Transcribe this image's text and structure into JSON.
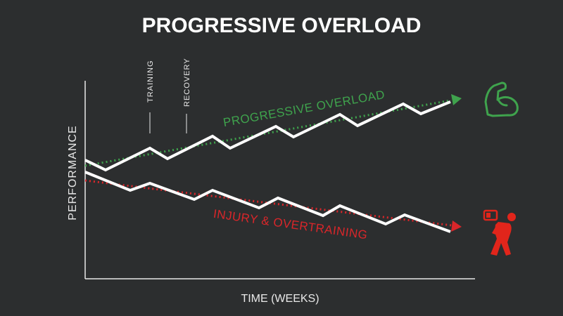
{
  "header": {
    "title": "PROGRESSIVE OVERLOAD"
  },
  "axes": {
    "y_label": "PERFORMANCE",
    "x_label": "TIME (WEEKS)"
  },
  "annotations": {
    "training": "TRAINING",
    "recovery": "RECOVERY",
    "progressive": "PROGRESSIVE OVERLOAD",
    "injury": "INJURY & OVERTRAINING"
  }
}
